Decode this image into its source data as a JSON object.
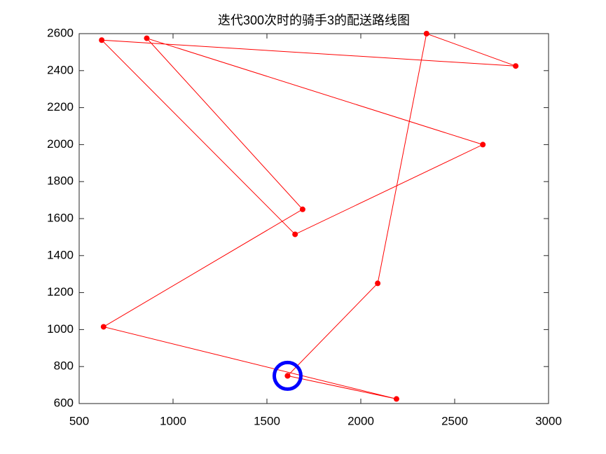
{
  "chart_data": {
    "type": "line",
    "title": "迭代300次时的骑手3的配送路线图",
    "xlim": [
      500,
      3000
    ],
    "xticks": [
      500,
      1000,
      1500,
      2000,
      2500,
      3000
    ],
    "ylim": [
      600,
      2600
    ],
    "yticks": [
      600,
      800,
      1000,
      1200,
      1400,
      1600,
      1800,
      2000,
      2200,
      2400,
      2600
    ],
    "grid": false,
    "series": [
      {
        "color": "#ff0000",
        "marker": "dot",
        "x": [
          1610,
          2090,
          2350,
          2825,
          620,
          1650,
          2650,
          860,
          1690,
          630,
          2190,
          1610
        ],
        "values": [
          750,
          1250,
          2600,
          2425,
          2565,
          1515,
          2000,
          2575,
          1650,
          1015,
          625,
          750
        ]
      },
      {
        "color": "#0000ff",
        "marker": "ring",
        "x": [
          1610
        ],
        "values": [
          750
        ]
      }
    ]
  }
}
